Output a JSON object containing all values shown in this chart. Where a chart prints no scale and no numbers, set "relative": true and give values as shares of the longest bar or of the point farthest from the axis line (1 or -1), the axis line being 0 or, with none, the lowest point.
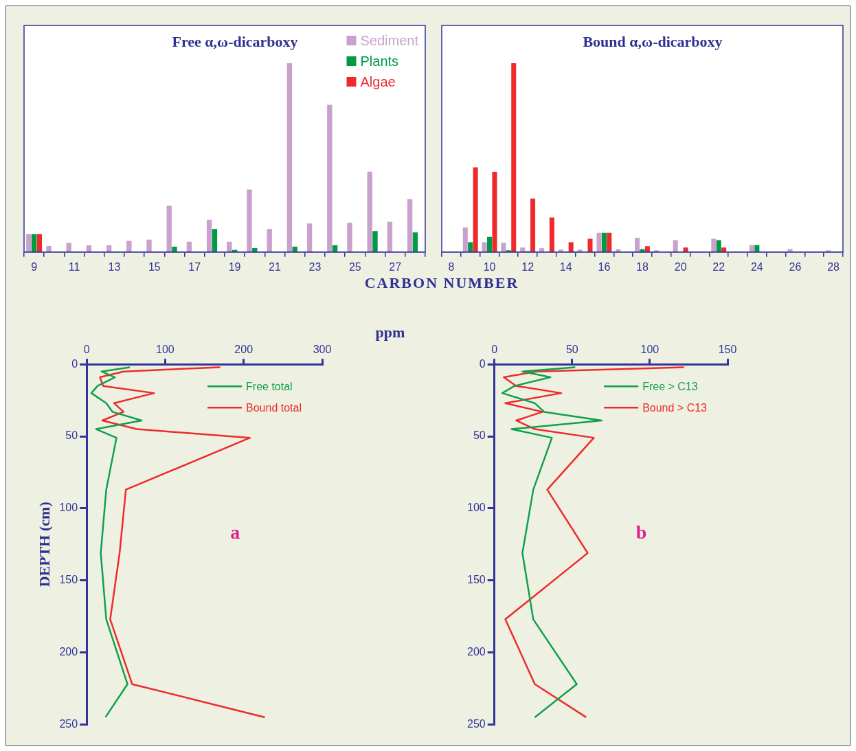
{
  "chart_data": [
    {
      "type": "bar",
      "title": "Free α,ω-dicarboxy",
      "xlabel": "CARBON NUMBER",
      "relative": true,
      "legend": "top right",
      "grid": false,
      "categories": [
        "9",
        null,
        "11",
        null,
        "13",
        null,
        "15",
        null,
        "17",
        null,
        "19",
        null,
        "21",
        null,
        "23",
        null,
        "25",
        null,
        "27",
        null
      ],
      "series": [
        {
          "name": "Sediment",
          "color": "#c8a2cc",
          "values": [
            0.095,
            0.032,
            0.048,
            0.036,
            0.036,
            0.059,
            0.066,
            0.245,
            0.055,
            0.171,
            0.055,
            0.331,
            0.122,
            1,
            0.151,
            0.78,
            0.155,
            0.426,
            0.16,
            0.279
          ]
        },
        {
          "name": "Plants",
          "color": "#009a44",
          "values": [
            0.095,
            null,
            null,
            null,
            null,
            null,
            null,
            0.028,
            null,
            0.122,
            0.011,
            0.021,
            null,
            0.028,
            null,
            0.036,
            null,
            0.111,
            null,
            0.104
          ]
        },
        {
          "name": "Algae",
          "color": "#ee2a2b",
          "values": [
            0.095,
            null,
            null,
            null,
            null,
            null,
            null,
            null,
            null,
            null,
            null,
            null,
            null,
            null,
            null,
            null,
            null,
            null,
            null,
            null
          ]
        }
      ]
    },
    {
      "type": "bar",
      "title": "Bound α,ω-dicarboxy",
      "relative": true,
      "legend": false,
      "grid": false,
      "categories": [
        "8",
        null,
        "10",
        null,
        "12",
        null,
        "14",
        null,
        "16",
        null,
        "18",
        null,
        "20",
        null,
        "22",
        null,
        "24",
        null,
        "26",
        null,
        "28"
      ],
      "series": [
        {
          "color": "#c8a2cc",
          "values": [
            null,
            0.13,
            0.052,
            0.048,
            0.024,
            0.02,
            0.013,
            0.013,
            0.102,
            0.016,
            0.076,
            0.009,
            0.063,
            null,
            0.07,
            null,
            0.037,
            null,
            0.016,
            null,
            0.009
          ]
        },
        {
          "color": "#009a44",
          "values": [
            null,
            0.052,
            0.08,
            0.009,
            0.005,
            null,
            null,
            null,
            0.102,
            null,
            0.016,
            null,
            null,
            null,
            0.063,
            null,
            0.037,
            null,
            null,
            null,
            null
          ]
        },
        {
          "color": "#ee2a2b",
          "values": [
            null,
            0.449,
            0.425,
            1,
            0.283,
            0.183,
            0.052,
            0.07,
            0.102,
            null,
            0.031,
            null,
            0.024,
            null,
            0.024,
            null,
            null,
            null,
            null,
            null,
            null
          ]
        }
      ]
    },
    {
      "type": "line",
      "xlabel": "ppm",
      "ylabel": "DEPTH (cm)",
      "annotations": [
        "a"
      ],
      "legend": "top right",
      "grid": false,
      "marker": "none",
      "line_style": "solid",
      "xlim": [
        0,
        300
      ],
      "xticks": [
        0,
        100,
        200,
        300
      ],
      "ylim": [
        250,
        0
      ],
      "yticks": [
        0,
        50,
        100,
        150,
        200,
        250
      ],
      "series": [
        {
          "name": "Free total",
          "color": "#10a04a",
          "x": [
            55,
            19,
            36,
            14,
            6,
            25,
            33,
            70,
            12,
            38,
            25,
            18,
            25,
            52,
            24
          ],
          "values": [
            2,
            5,
            9,
            15,
            20,
            27,
            33,
            39,
            45,
            51,
            87,
            131,
            177,
            222,
            245
          ]
        },
        {
          "name": "Bound total",
          "color": "#ee2a2b",
          "x": [
            170,
            47,
            17,
            21,
            86,
            35,
            47,
            20,
            64,
            208,
            50,
            42,
            30,
            58,
            227
          ],
          "values": [
            2,
            5,
            9,
            15,
            20,
            27,
            33,
            39,
            45,
            51,
            87,
            131,
            177,
            222,
            245
          ]
        }
      ]
    },
    {
      "type": "line",
      "annotations": [
        "b"
      ],
      "legend": "top right",
      "grid": false,
      "marker": "none",
      "line_style": "solid",
      "xlim": [
        0,
        150
      ],
      "xticks": [
        0,
        50,
        100,
        150
      ],
      "ylim": [
        250,
        0
      ],
      "yticks": [
        0,
        50,
        100,
        150,
        200,
        250
      ],
      "series": [
        {
          "name": "Free > C13",
          "color": "#10a04a",
          "x": [
            52,
            18,
            36,
            13,
            5,
            26,
            32,
            69,
            11,
            37,
            25,
            18,
            25,
            53,
            26
          ],
          "values": [
            2,
            5,
            9,
            15,
            20,
            27,
            33,
            39,
            45,
            51,
            87,
            131,
            177,
            222,
            245
          ]
        },
        {
          "name": "Bound > C13",
          "color": "#ee2a2b",
          "x": [
            122,
            27,
            6,
            14,
            43,
            7,
            31,
            14,
            26,
            64,
            34,
            60,
            7,
            26,
            59
          ],
          "values": [
            2,
            5,
            9,
            15,
            20,
            27,
            33,
            39,
            45,
            51,
            87,
            131,
            177,
            222,
            245
          ]
        }
      ]
    }
  ]
}
